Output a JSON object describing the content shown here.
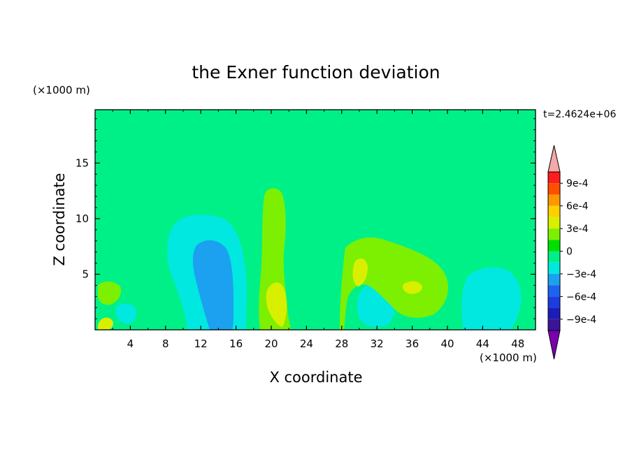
{
  "chart_data": {
    "type": "heatmap",
    "title": "the Exner function deviation",
    "xlabel": "X coordinate",
    "ylabel": "Z coordinate",
    "x_unit": "(×1000 m)",
    "y_unit": "(×1000 m)",
    "time_label": "t=2.4624e+06",
    "xlim": [
      0,
      50
    ],
    "ylim": [
      0,
      19.8
    ],
    "x_ticks": [
      4,
      8,
      12,
      16,
      20,
      24,
      28,
      32,
      36,
      40,
      44,
      48
    ],
    "y_ticks": [
      5,
      10,
      15
    ],
    "colorbar": {
      "levels": [
        -0.00105,
        -0.0009,
        -0.00075,
        -0.0006,
        -0.00045,
        -0.0003,
        -0.00015,
        0,
        0.00015,
        0.0003,
        0.00045,
        0.0006,
        0.00075,
        0.0009,
        0.00105
      ],
      "colors": [
        "#7a00b0",
        "#3c149a",
        "#1c1cb8",
        "#1c3ce0",
        "#1c64f0",
        "#1ca0f0",
        "#00e8e0",
        "#00f088",
        "#00e000",
        "#7cf000",
        "#d8f000",
        "#ffd000",
        "#ff9800",
        "#ff5000",
        "#ff1c1c",
        "#f4a8a8"
      ],
      "tick_labels": [
        "9e-4",
        "6e-4",
        "3e-4",
        "0",
        "−3e-4",
        "−6e-4",
        "−9e-4"
      ]
    },
    "field": {
      "background_value": 5e-05,
      "features": [
        {
          "region": "upper central tongue",
          "value": 0.00012
        },
        {
          "region": "low plume x~20",
          "value": 0.00027
        },
        {
          "region": "low plume x~30",
          "value": 0.00032
        },
        {
          "region": "low cell x~36",
          "value": 0.0004
        },
        {
          "region": "low cell x~3",
          "value": 0.0003
        },
        {
          "region": "cyan cell x~14",
          "value": -0.00025
        },
        {
          "region": "cyan cell x~32",
          "value": -0.00012
        },
        {
          "region": "cyan cell x~45",
          "value": -0.00015
        }
      ]
    }
  }
}
